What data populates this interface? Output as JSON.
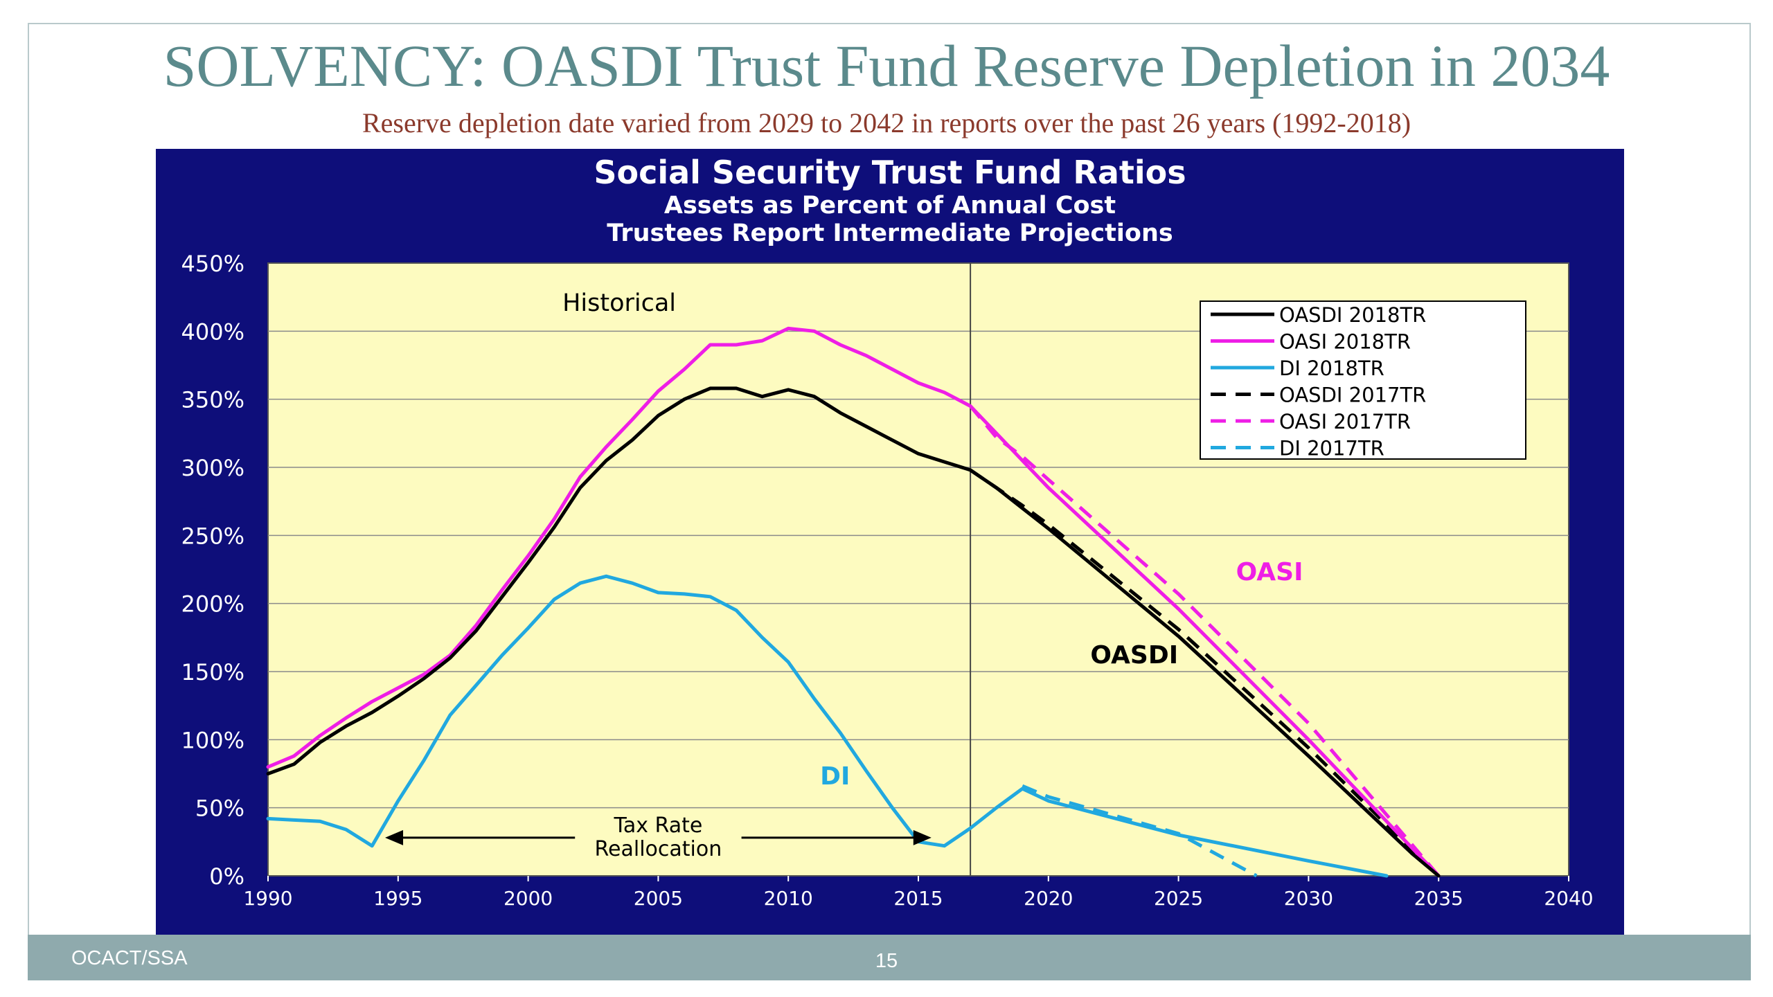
{
  "slide": {
    "title": "SOLVENCY:  OASDI Trust Fund Reserve Depletion in 2034",
    "subtitle": "Reserve depletion date varied from 2029 to 2042 in reports over the past 26 years (1992-2018)",
    "footer_left": "OCACT/SSA",
    "page_number": "15"
  },
  "colors": {
    "panel": "#0e0e7a",
    "plot_bg": "#fdfbc0",
    "oasdi": "#000000",
    "oasi": "#ee1ee6",
    "di": "#21a8df"
  },
  "chart_data": {
    "type": "line",
    "title": "Social Security Trust Fund Ratios",
    "subtitle_1": "Assets as Percent of Annual Cost",
    "subtitle_2": "Trustees Report Intermediate Projections",
    "xlim": [
      1990,
      2040
    ],
    "ylim": [
      0,
      450
    ],
    "x_ticks": [
      1990,
      1995,
      2000,
      2005,
      2010,
      2015,
      2020,
      2025,
      2030,
      2035,
      2040
    ],
    "y_ticks": [
      0,
      50,
      100,
      150,
      200,
      250,
      300,
      350,
      400,
      450
    ],
    "y_tick_labels": [
      "0%",
      "50%",
      "100%",
      "150%",
      "200%",
      "250%",
      "300%",
      "350%",
      "400%",
      "450%"
    ],
    "grid": true,
    "legend_position": "top-right",
    "vertical_line_x": 2017,
    "annotations": {
      "historical": "Historical",
      "oasi": "OASI",
      "oasdi": "OASDI",
      "di": "DI",
      "tax_rate_line1": "Tax Rate",
      "tax_rate_line2": "Reallocation"
    },
    "tax_rate_arrow": {
      "x_start": 1994.5,
      "x_end": 2015.5,
      "y": 28
    },
    "series": [
      {
        "name": "OASDI 2018TR",
        "color": "#000000",
        "dash": "solid",
        "points": [
          [
            1990,
            75
          ],
          [
            1991,
            82
          ],
          [
            1992,
            98
          ],
          [
            1993,
            110
          ],
          [
            1994,
            120
          ],
          [
            1995,
            132
          ],
          [
            1996,
            145
          ],
          [
            1997,
            160
          ],
          [
            1998,
            180
          ],
          [
            1999,
            205
          ],
          [
            2000,
            230
          ],
          [
            2001,
            256
          ],
          [
            2002,
            285
          ],
          [
            2003,
            305
          ],
          [
            2004,
            320
          ],
          [
            2005,
            338
          ],
          [
            2006,
            350
          ],
          [
            2007,
            358
          ],
          [
            2008,
            358
          ],
          [
            2009,
            352
          ],
          [
            2010,
            357
          ],
          [
            2011,
            352
          ],
          [
            2012,
            340
          ],
          [
            2013,
            330
          ],
          [
            2014,
            320
          ],
          [
            2015,
            310
          ],
          [
            2016,
            304
          ],
          [
            2017,
            298
          ],
          [
            2018,
            285
          ],
          [
            2019,
            270
          ],
          [
            2020,
            255
          ],
          [
            2025,
            176
          ],
          [
            2030,
            88
          ],
          [
            2034,
            16
          ],
          [
            2035,
            0
          ]
        ]
      },
      {
        "name": "OASI 2018TR",
        "color": "#ee1ee6",
        "dash": "solid",
        "points": [
          [
            1990,
            80
          ],
          [
            1991,
            88
          ],
          [
            1992,
            103
          ],
          [
            1993,
            116
          ],
          [
            1994,
            128
          ],
          [
            1995,
            138
          ],
          [
            1996,
            148
          ],
          [
            1997,
            162
          ],
          [
            1998,
            184
          ],
          [
            1999,
            210
          ],
          [
            2000,
            235
          ],
          [
            2001,
            262
          ],
          [
            2002,
            293
          ],
          [
            2003,
            315
          ],
          [
            2004,
            335
          ],
          [
            2005,
            356
          ],
          [
            2006,
            372
          ],
          [
            2007,
            390
          ],
          [
            2008,
            390
          ],
          [
            2009,
            393
          ],
          [
            2010,
            402
          ],
          [
            2011,
            400
          ],
          [
            2012,
            390
          ],
          [
            2013,
            382
          ],
          [
            2014,
            372
          ],
          [
            2015,
            362
          ],
          [
            2016,
            355
          ],
          [
            2017,
            345
          ],
          [
            2018,
            325
          ],
          [
            2019,
            305
          ],
          [
            2020,
            285
          ],
          [
            2025,
            196
          ],
          [
            2030,
            100
          ],
          [
            2035,
            0
          ]
        ]
      },
      {
        "name": "DI 2018TR",
        "color": "#21a8df",
        "dash": "solid",
        "points": [
          [
            1990,
            42
          ],
          [
            1991,
            41
          ],
          [
            1992,
            40
          ],
          [
            1993,
            34
          ],
          [
            1994,
            22
          ],
          [
            1995,
            55
          ],
          [
            1996,
            85
          ],
          [
            1997,
            118
          ],
          [
            1998,
            140
          ],
          [
            1999,
            162
          ],
          [
            2000,
            182
          ],
          [
            2001,
            203
          ],
          [
            2002,
            215
          ],
          [
            2003,
            220
          ],
          [
            2004,
            215
          ],
          [
            2005,
            208
          ],
          [
            2006,
            207
          ],
          [
            2007,
            205
          ],
          [
            2008,
            195
          ],
          [
            2009,
            175
          ],
          [
            2010,
            157
          ],
          [
            2011,
            130
          ],
          [
            2012,
            105
          ],
          [
            2013,
            77
          ],
          [
            2014,
            50
          ],
          [
            2015,
            25
          ],
          [
            2016,
            22
          ],
          [
            2017,
            35
          ],
          [
            2018,
            50
          ],
          [
            2019,
            64
          ],
          [
            2020,
            55
          ],
          [
            2025,
            30
          ],
          [
            2030,
            11
          ],
          [
            2033,
            0
          ]
        ]
      },
      {
        "name": "OASDI 2017TR",
        "color": "#000000",
        "dash": "dashed",
        "points": [
          [
            2017,
            298
          ],
          [
            2018,
            285
          ],
          [
            2019,
            272
          ],
          [
            2020,
            258
          ],
          [
            2025,
            181
          ],
          [
            2030,
            94
          ],
          [
            2035,
            0
          ]
        ]
      },
      {
        "name": "OASI 2017TR",
        "color": "#ee1ee6",
        "dash": "dashed",
        "points": [
          [
            2017,
            345
          ],
          [
            2018,
            322
          ],
          [
            2019,
            308
          ],
          [
            2020,
            291
          ],
          [
            2025,
            207
          ],
          [
            2030,
            112
          ],
          [
            2035,
            0
          ]
        ]
      },
      {
        "name": "DI 2017TR",
        "color": "#21a8df",
        "dash": "dashed",
        "points": [
          [
            2019,
            66
          ],
          [
            2020,
            58
          ],
          [
            2025,
            31
          ],
          [
            2028,
            0
          ]
        ]
      }
    ]
  }
}
